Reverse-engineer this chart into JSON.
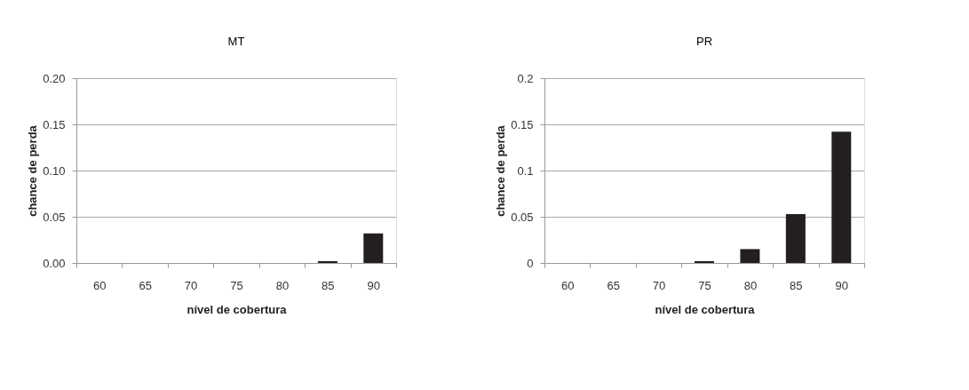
{
  "chart_data": [
    {
      "type": "bar",
      "title": "MT",
      "xlabel": "nível de cobertura",
      "ylabel": "chance de perda",
      "categories": [
        "60",
        "65",
        "70",
        "75",
        "80",
        "85",
        "90"
      ],
      "values": [
        0,
        0,
        0,
        0,
        0,
        0.002,
        0.032
      ],
      "color": "#231f20",
      "ylim": [
        0,
        0.2
      ],
      "yticks": [
        {
          "value": 0,
          "label": "0.00"
        },
        {
          "value": 0.05,
          "label": "0.05"
        },
        {
          "value": 0.1,
          "label": "0.10"
        },
        {
          "value": 0.15,
          "label": "0.15"
        },
        {
          "value": 0.2,
          "label": "0.20"
        }
      ],
      "grid": "y"
    },
    {
      "type": "bar",
      "title": "PR",
      "xlabel": "nível de cobertura",
      "ylabel": "chance de perda",
      "categories": [
        "60",
        "65",
        "70",
        "75",
        "80",
        "85",
        "90"
      ],
      "values": [
        0,
        0,
        0,
        0.002,
        0.015,
        0.053,
        0.142
      ],
      "color": "#231f20",
      "ylim": [
        0,
        0.2
      ],
      "yticks": [
        0,
        0.05,
        0.1,
        0.15,
        0.2
      ],
      "grid": "y"
    }
  ]
}
